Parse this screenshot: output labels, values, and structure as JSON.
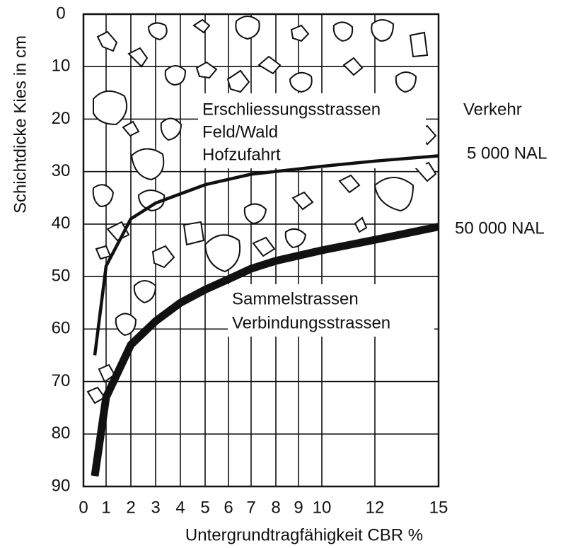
{
  "chart_data": {
    "type": "line",
    "xlabel": "Untergrundtragfähigkeit  CBR %",
    "ylabel": "Schichtdicke  Kies in cm",
    "legend_title": "Verkehr",
    "annotations": [
      "Erschliessungsstrassen",
      "Feld/Wald",
      "Hofzufahrt",
      "Sammelstrassen",
      "Verbindungsstrassen"
    ],
    "xlim": [
      0,
      15
    ],
    "xticks": [
      0,
      1,
      2,
      3,
      4,
      5,
      6,
      7,
      8,
      9,
      10,
      12,
      15
    ],
    "ylim": [
      0,
      90
    ],
    "yticks": [
      0,
      10,
      20,
      30,
      40,
      50,
      60,
      70,
      80,
      90
    ],
    "y_inverted": true,
    "grid": true,
    "series": [
      {
        "name": "5 000 NAL",
        "color": "#111111",
        "x": [
          0.5,
          1,
          2,
          3,
          5,
          7,
          10,
          12,
          15
        ],
        "values": [
          65,
          48,
          39,
          36,
          32.5,
          30.5,
          29,
          28,
          27
        ]
      },
      {
        "name": "50 000 NAL",
        "color": "#111111",
        "x": [
          0.5,
          1,
          2,
          3,
          4,
          5,
          6,
          7,
          8,
          10,
          12,
          15
        ],
        "values": [
          88,
          73,
          63,
          58.5,
          55,
          52.5,
          50.5,
          48.5,
          47,
          45,
          43,
          40.5
        ]
      }
    ]
  }
}
